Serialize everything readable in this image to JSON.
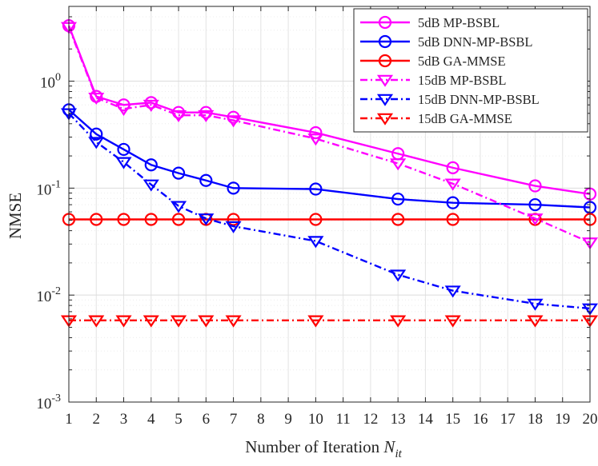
{
  "chart_data": {
    "type": "line",
    "title": "",
    "xlabel": "Number of Iteration",
    "xlabel_sub": "it",
    "xlabel_var": "N",
    "ylabel": "NMSE",
    "yscale": "log",
    "ylim": [
      0.001,
      5
    ],
    "xlim": [
      1,
      20
    ],
    "grid": true,
    "minor_grid": true,
    "legend_position": "top-right",
    "x_ticks": [
      1,
      2,
      3,
      4,
      5,
      6,
      7,
      8,
      9,
      10,
      11,
      12,
      13,
      14,
      15,
      16,
      17,
      18,
      19,
      20
    ],
    "x_tick_labels": [
      "1",
      "2",
      "3",
      "4",
      "5",
      "6",
      "7",
      "8",
      "9",
      "10",
      "11",
      "12",
      "13",
      "14",
      "15",
      "16",
      "17",
      "18",
      "19",
      "20"
    ],
    "y_ticks": [
      {
        "value": 1,
        "base": "10",
        "exp": "0"
      },
      {
        "value": 0.1,
        "base": "10",
        "exp": "-1"
      },
      {
        "value": 0.01,
        "base": "10",
        "exp": "-2"
      },
      {
        "value": 0.001,
        "base": "10",
        "exp": "-3"
      }
    ],
    "x": [
      1,
      2,
      3,
      4,
      5,
      6,
      7,
      10,
      13,
      15,
      18,
      20
    ],
    "series": [
      {
        "name": "5dB MP-BSBL",
        "color": "#ff00ff",
        "dash": "solid",
        "marker": "circle",
        "values": [
          3.3,
          0.72,
          0.6,
          0.63,
          0.51,
          0.51,
          0.46,
          0.33,
          0.21,
          0.155,
          0.105,
          0.088
        ]
      },
      {
        "name": "5dB DNN-MP-BSBL",
        "color": "#0000ff",
        "dash": "solid",
        "marker": "circle",
        "values": [
          0.54,
          0.32,
          0.23,
          0.165,
          0.138,
          0.118,
          0.1,
          0.098,
          0.079,
          0.073,
          0.07,
          0.066
        ]
      },
      {
        "name": "5dB GA-MMSE",
        "color": "#ff0000",
        "dash": "solid",
        "marker": "circle",
        "values": [
          0.051,
          0.051,
          0.051,
          0.051,
          0.051,
          0.051,
          0.051,
          0.051,
          0.051,
          0.051,
          0.051,
          0.051
        ]
      },
      {
        "name": "15dB MP-BSBL",
        "color": "#ff00ff",
        "dash": "dashdot",
        "marker": "triangle-down",
        "values": [
          3.2,
          0.7,
          0.55,
          0.6,
          0.48,
          0.48,
          0.43,
          0.29,
          0.17,
          0.11,
          0.052,
          0.031
        ]
      },
      {
        "name": "15dB DNN-MP-BSBL",
        "color": "#0000ff",
        "dash": "dashdot",
        "marker": "triangle-down",
        "values": [
          0.5,
          0.27,
          0.175,
          0.108,
          0.068,
          0.052,
          0.044,
          0.032,
          0.0155,
          0.011,
          0.0083,
          0.0075
        ]
      },
      {
        "name": "15dB GA-MMSE",
        "color": "#ff0000",
        "dash": "dashdot",
        "marker": "triangle-down",
        "values": [
          0.0058,
          0.0058,
          0.0058,
          0.0058,
          0.0058,
          0.0058,
          0.0058,
          0.0058,
          0.0058,
          0.0058,
          0.0058,
          0.0058
        ]
      }
    ]
  }
}
